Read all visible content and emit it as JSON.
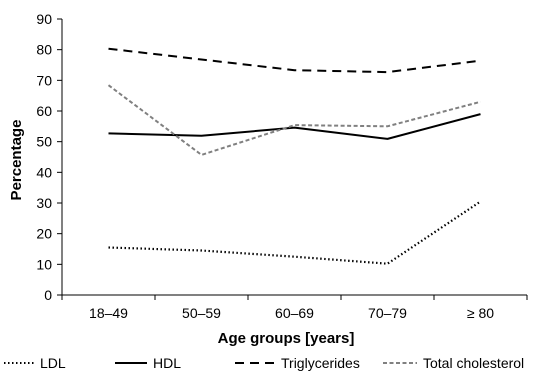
{
  "chart_data": {
    "type": "line",
    "title": "",
    "xlabel": "Age groups [years]",
    "ylabel": "Percentage",
    "categories": [
      "18–49",
      "50–59",
      "60–69",
      "70–79",
      "≥ 80"
    ],
    "ylim": [
      0,
      90
    ],
    "yticks": [
      0,
      10,
      20,
      30,
      40,
      50,
      60,
      70,
      80,
      90
    ],
    "grid": false,
    "legend_position": "bottom",
    "series": [
      {
        "name": "LDL",
        "values": [
          15.5,
          14.5,
          12.5,
          10.2,
          30.5
        ],
        "color": "#000000",
        "style": "dotted"
      },
      {
        "name": "HDL",
        "values": [
          52.7,
          51.9,
          54.6,
          50.9,
          59.0
        ],
        "color": "#000000",
        "style": "solid"
      },
      {
        "name": "Triglycerides",
        "values": [
          80.3,
          76.8,
          73.3,
          72.7,
          76.4
        ],
        "color": "#000000",
        "style": "dashed"
      },
      {
        "name": "Total cholesterol",
        "values": [
          68.4,
          45.7,
          55.4,
          55.0,
          63.0
        ],
        "color": "#808080",
        "style": "short-dashed"
      }
    ]
  }
}
